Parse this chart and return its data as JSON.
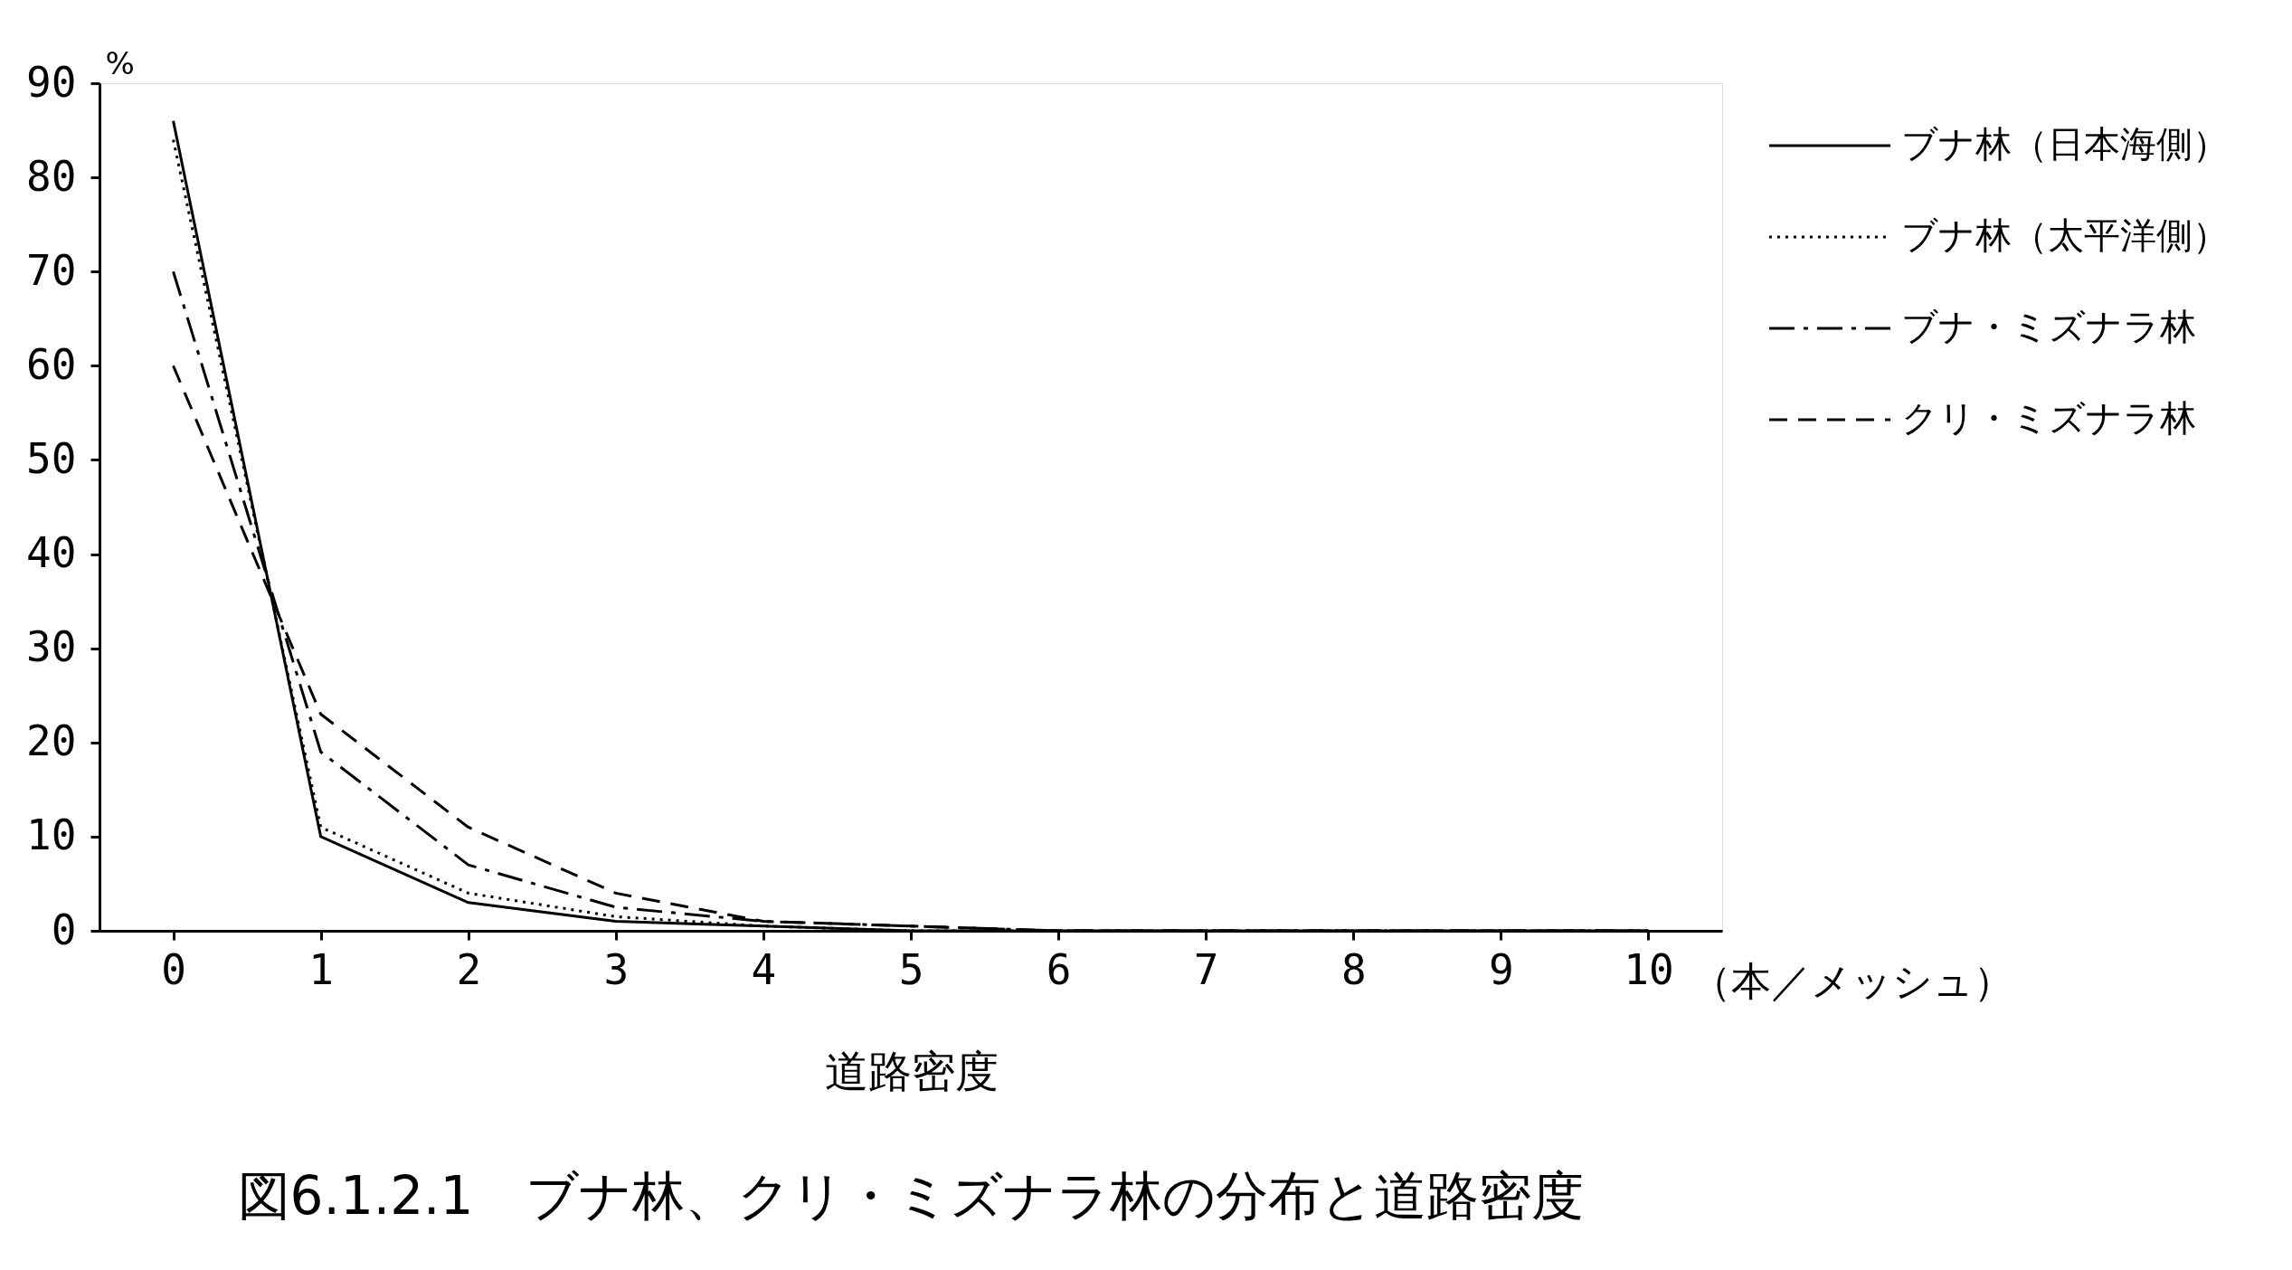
{
  "chart_data": {
    "type": "line",
    "title": "図6.1.2.1　ブナ林、クリ・ミズナラ林の分布と道路密度",
    "xlabel": "道路密度",
    "ylabel": "%",
    "annotations": [
      "（本／メッシュ）"
    ],
    "x": [
      0,
      1,
      2,
      3,
      4,
      5,
      6,
      7,
      8,
      9,
      10
    ],
    "xlim": [
      -0.5,
      10.5
    ],
    "xticks": [
      0,
      1,
      2,
      3,
      4,
      5,
      6,
      7,
      8,
      9,
      10
    ],
    "ylim": [
      0,
      90
    ],
    "yticks": [
      0,
      10,
      20,
      30,
      40,
      50,
      60,
      70,
      80,
      90
    ],
    "grid": false,
    "legend": "top right",
    "series": [
      {
        "name": "ブナ林（日本海側）",
        "color": "#000000",
        "line_style": "solid",
        "values": [
          86,
          10,
          3,
          1,
          0.5,
          0,
          0,
          0,
          0,
          0,
          0
        ]
      },
      {
        "name": "ブナ林（太平洋側）",
        "color": "#000000",
        "line_style": "dotted",
        "values": [
          84,
          11,
          4,
          1.5,
          0.5,
          0,
          0,
          0,
          0,
          0,
          0
        ]
      },
      {
        "name": "ブナ・ミズナラ林",
        "color": "#000000",
        "line_style": "dashdot",
        "values": [
          70,
          19,
          7,
          2.5,
          1,
          0.5,
          0,
          0,
          0,
          0,
          0
        ]
      },
      {
        "name": "クリ・ミズナラ林",
        "color": "#000000",
        "line_style": "dashed",
        "values": [
          60,
          23,
          11,
          4,
          1,
          0.5,
          0,
          0,
          0,
          0,
          0
        ]
      }
    ]
  }
}
